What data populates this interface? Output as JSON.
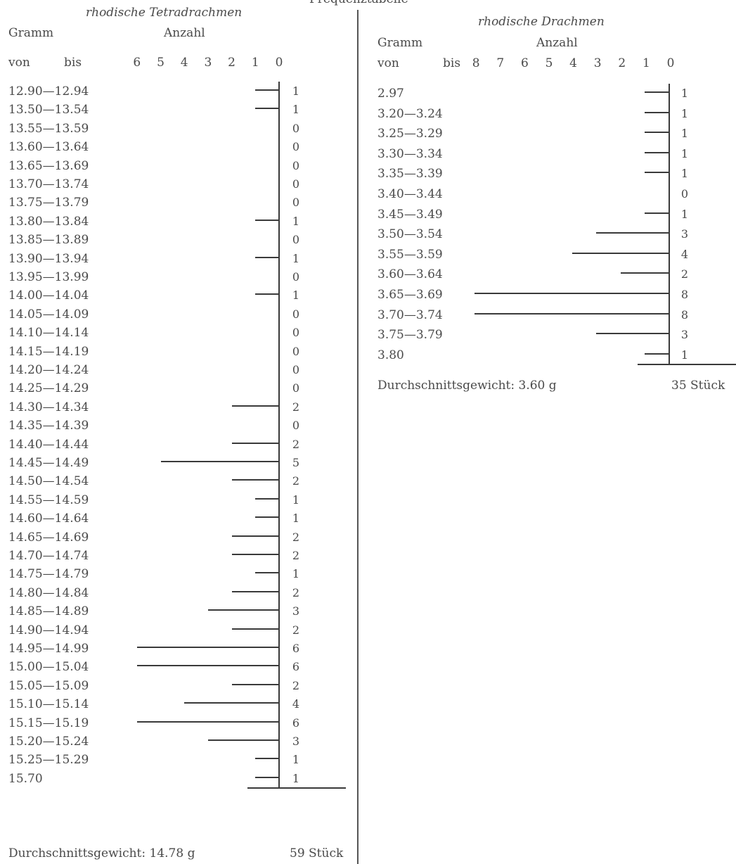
{
  "page": {
    "top_heading_fragment": "Frequenztabelle"
  },
  "charts_text": {
    "left": {
      "gramm": "Gramm",
      "anzahl": "Anzahl",
      "von": "von",
      "bis": "bis"
    },
    "right": {
      "gramm": "Gramm",
      "anzahl": "Anzahl",
      "von": "von",
      "bis": "bis"
    }
  },
  "chart_data": [
    {
      "type": "bar",
      "orientation": "horizontal",
      "title": "rhodische Tetradrachmen",
      "xlabel": "Anzahl",
      "ylabel": "Gramm von bis",
      "xlim": [
        0,
        6
      ],
      "x_ticks": [
        "6",
        "5",
        "4",
        "3",
        "2",
        "1",
        "0"
      ],
      "categories": [
        "12.90—12.94",
        "13.50—13.54",
        "13.55—13.59",
        "13.60—13.64",
        "13.65—13.69",
        "13.70—13.74",
        "13.75—13.79",
        "13.80—13.84",
        "13.85—13.89",
        "13.90—13.94",
        "13.95—13.99",
        "14.00—14.04",
        "14.05—14.09",
        "14.10—14.14",
        "14.15—14.19",
        "14.20—14.24",
        "14.25—14.29",
        "14.30—14.34",
        "14.35—14.39",
        "14.40—14.44",
        "14.45—14.49",
        "14.50—14.54",
        "14.55—14.59",
        "14.60—14.64",
        "14.65—14.69",
        "14.70—14.74",
        "14.75—14.79",
        "14.80—14.84",
        "14.85—14.89",
        "14.90—14.94",
        "14.95—14.99",
        "15.00—15.04",
        "15.05—15.09",
        "15.10—15.14",
        "15.15—15.19",
        "15.20—15.24",
        "15.25—15.29",
        "15.70"
      ],
      "values": [
        1,
        1,
        0,
        0,
        0,
        0,
        0,
        1,
        0,
        1,
        0,
        1,
        0,
        0,
        0,
        0,
        0,
        2,
        0,
        2,
        5,
        2,
        1,
        1,
        2,
        2,
        1,
        2,
        3,
        2,
        6,
        6,
        2,
        4,
        6,
        3,
        1,
        1
      ],
      "footer_left": "Durchschnittsgewicht: 14.78 g",
      "footer_right": "59 Stück"
    },
    {
      "type": "bar",
      "orientation": "horizontal",
      "title": "rhodische Drachmen",
      "xlabel": "Anzahl",
      "ylabel": "Gramm von bis",
      "xlim": [
        0,
        8
      ],
      "x_ticks": [
        "8",
        "7",
        "6",
        "5",
        "4",
        "3",
        "2",
        "1",
        "0"
      ],
      "categories": [
        "2.97",
        "3.20—3.24",
        "3.25—3.29",
        "3.30—3.34",
        "3.35—3.39",
        "3.40—3.44",
        "3.45—3.49",
        "3.50—3.54",
        "3.55—3.59",
        "3.60—3.64",
        "3.65—3.69",
        "3.70—3.74",
        "3.75—3.79",
        "3.80"
      ],
      "values": [
        1,
        1,
        1,
        1,
        1,
        0,
        1,
        3,
        4,
        2,
        8,
        8,
        3,
        1
      ],
      "footer_left": "Durchschnittsgewicht: 3.60 g",
      "footer_right": "35 Stück"
    }
  ]
}
